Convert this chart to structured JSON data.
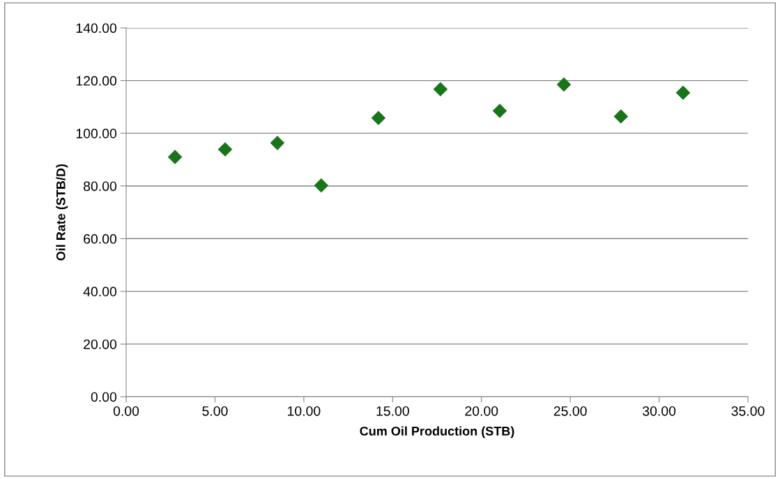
{
  "chart_data": {
    "type": "scatter",
    "xlabel": "Cum Oil Production (STB)",
    "ylabel": "Oil Rate (STB/D)",
    "x": [
      2.75,
      5.57,
      8.51,
      10.98,
      14.2,
      17.69,
      21.03,
      24.64,
      27.85,
      31.35
    ],
    "values": [
      91.0,
      93.9,
      96.3,
      80.2,
      105.8,
      116.7,
      108.5,
      118.5,
      106.4,
      115.4
    ],
    "color": "#1a751a",
    "marker": "diamond",
    "grid": "y",
    "xlim": [
      0,
      35
    ],
    "xticks": [
      {
        "value": 0,
        "label": "0.00"
      },
      {
        "value": 5,
        "label": "5.00"
      },
      {
        "value": 10,
        "label": "10.00"
      },
      {
        "value": 15,
        "label": "15.00"
      },
      {
        "value": 20,
        "label": "20.00"
      },
      {
        "value": 25,
        "label": "25.00"
      },
      {
        "value": 30,
        "label": "30.00"
      },
      {
        "value": 35,
        "label": "35.00"
      }
    ],
    "ylim": [
      0,
      140
    ],
    "yticks": [
      {
        "value": 0,
        "label": "0.00"
      },
      {
        "value": 20,
        "label": "20.00"
      },
      {
        "value": 40,
        "label": "40.00"
      },
      {
        "value": 60,
        "label": "60.00"
      },
      {
        "value": 80,
        "label": "80.00"
      },
      {
        "value": 100,
        "label": "100.00"
      },
      {
        "value": 120,
        "label": "120.00"
      },
      {
        "value": 140,
        "label": "140.00"
      }
    ]
  }
}
